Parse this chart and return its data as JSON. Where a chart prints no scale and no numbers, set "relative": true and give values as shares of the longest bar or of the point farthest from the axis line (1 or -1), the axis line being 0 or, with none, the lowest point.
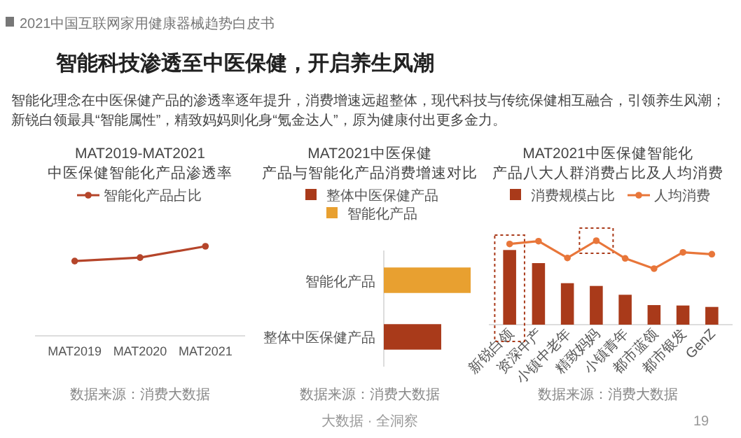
{
  "chart_data": [
    {
      "type": "line",
      "title": "MAT2019-MAT2021\n中医保健智能化产品渗透率",
      "relative": true,
      "legend": "top",
      "marker": "circle",
      "categories": [
        "MAT2019",
        "MAT2020",
        "MAT2021"
      ],
      "series": [
        {
          "name": "智能化产品占比",
          "color": "#b5452a",
          "values": [
            0.835,
            0.874,
            1
          ]
        }
      ],
      "annotations": [
        "2021中国互联网家用健康器械趋势白皮书",
        "智能科技渗透至中医保健，开启养生风潮",
        "智能化理念在中医保健产品的渗透率逐年提升，消费增速远超整体，现代科技与传统保健相互融合，引领养生风潮；新锐白领最具“智能属性”，精致妈妈则化身“氪金达人”，原为健康付出更多金力。",
        "数据来源：消费大数据"
      ]
    },
    {
      "type": "bar",
      "orientation": "horizontal",
      "relative": true,
      "legend": "top",
      "title": "MAT2021中医保健产品与智能化产品消费增速对比",
      "categories": [
        "智能化产品",
        "整体中医保健产品"
      ],
      "series": [
        {
          "name": "整体中医保健产品",
          "color": "#a93a1a",
          "values": [
            null,
            0.661
          ]
        },
        {
          "name": "智能化产品",
          "color": "#e8a030",
          "values": [
            1,
            null
          ]
        }
      ],
      "annotations": [
        "数据来源：消费大数据",
        "大数据 · 全洞察"
      ]
    },
    {
      "type": "bar",
      "relative": true,
      "legend": "top",
      "marker": "circle",
      "title": "MAT2021中医保健智能化产品八大人群消费占比及人均消费",
      "categories": [
        "新锐白领",
        "资深中产",
        "小镇中老年",
        "精致妈妈",
        "小镇青年",
        "都市蓝领",
        "都市银发",
        "GenZ"
      ],
      "series": [
        {
          "name": "消费规模占比",
          "type": "bar",
          "color": "#a93a1a",
          "values": [
            0.889,
            0.733,
            0.494,
            0.461,
            0.356,
            0.233,
            0.228,
            0.211
          ]
        },
        {
          "name": "人均消费",
          "type": "line",
          "color": "#e8763a",
          "values": [
            0.961,
            0.994,
            0.794,
            1,
            0.789,
            0.667,
            0.861,
            0.839
          ]
        }
      ],
      "annotations": [
        "数据来源：消费大数据",
        "19"
      ]
    }
  ]
}
